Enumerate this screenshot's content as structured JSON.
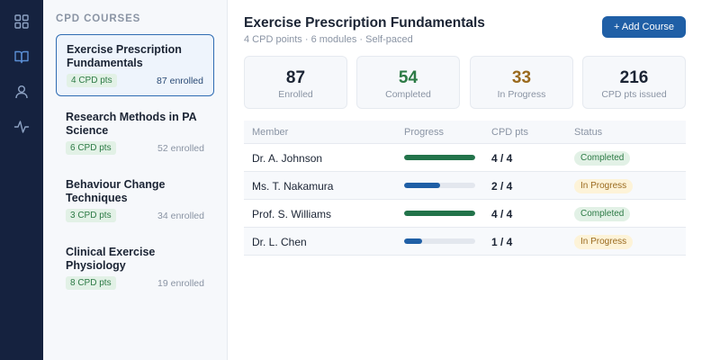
{
  "rail": {
    "icons": [
      "grid-icon",
      "book-icon",
      "user-icon",
      "activity-icon"
    ]
  },
  "panel": {
    "title": "CPD COURSES",
    "courses": [
      {
        "name": "Exercise Prescription Fundamentals",
        "pts": "4 CPD pts",
        "enrolled": "87 enrolled",
        "active": true
      },
      {
        "name": "Research Methods in PA Science",
        "pts": "6 CPD pts",
        "enrolled": "52 enrolled",
        "active": false
      },
      {
        "name": "Behaviour Change Techniques",
        "pts": "3 CPD pts",
        "enrolled": "34 enrolled",
        "active": false
      },
      {
        "name": "Clinical Exercise Physiology",
        "pts": "8 CPD pts",
        "enrolled": "19 enrolled",
        "active": false
      }
    ]
  },
  "main": {
    "title": "Exercise Prescription Fundamentals",
    "subtitle": "4 CPD points · 6 modules · Self-paced",
    "add_button": "+ Add Course",
    "stats": [
      {
        "value": "87",
        "label": "Enrolled",
        "color": "#1b2434"
      },
      {
        "value": "54",
        "label": "Completed",
        "color": "#2c7a45"
      },
      {
        "value": "33",
        "label": "In Progress",
        "color": "#9a6a1e"
      },
      {
        "value": "216",
        "label": "CPD pts issued",
        "color": "#1b2434"
      }
    ],
    "table": {
      "headers": [
        "Member",
        "Progress",
        "CPD pts",
        "Status"
      ],
      "rows": [
        {
          "member": "Dr. A. Johnson",
          "progress": 1.0,
          "pts": "4 / 4",
          "status": "Completed"
        },
        {
          "member": "Ms. T. Nakamura",
          "progress": 0.5,
          "pts": "2 / 4",
          "status": "In Progress"
        },
        {
          "member": "Prof. S. Williams",
          "progress": 1.0,
          "pts": "4 / 4",
          "status": "Completed"
        },
        {
          "member": "Dr. L. Chen",
          "progress": 0.25,
          "pts": "1 / 4",
          "status": "In Progress"
        }
      ]
    }
  },
  "colors": {
    "completed_bar": "#22734a",
    "progress_bar": "#1f5fa6",
    "completed_badge_bg": "#e2f1e6",
    "completed_badge_fg": "#2c7a45",
    "progress_badge_bg": "#fdf3d8",
    "progress_badge_fg": "#9a6a1e"
  }
}
